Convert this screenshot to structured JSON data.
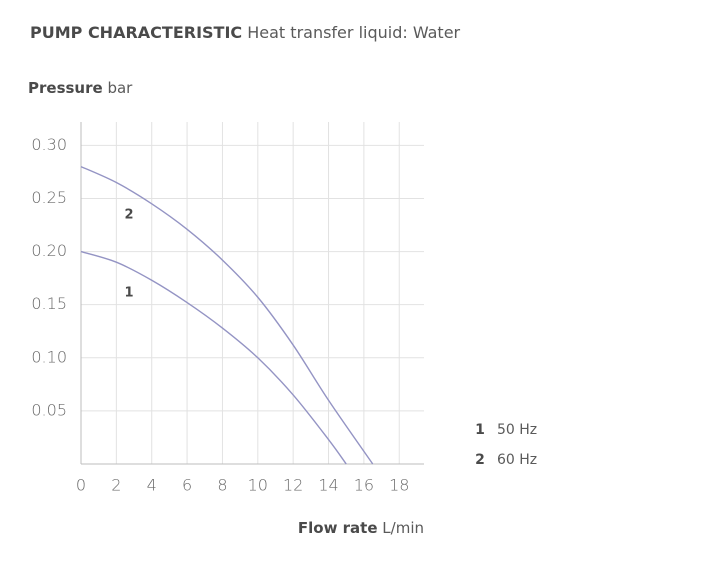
{
  "chart_data": {
    "type": "line",
    "title": "PUMP CHARACTERISTIC",
    "subtitle": "Heat transfer liquid: Water",
    "y_label": "Pressure",
    "y_unit": "bar",
    "x_label": "Flow rate",
    "x_unit": "L/min",
    "xlim": [
      0,
      19.4
    ],
    "xticks": [
      0,
      2,
      4,
      6,
      8,
      10,
      12,
      14,
      16,
      18
    ],
    "ylim": [
      0,
      0.322
    ],
    "yticks": [
      0.05,
      {
        "value": 0.1,
        "label": "0.10"
      },
      0.15,
      {
        "value": 0.2,
        "label": "0.20"
      },
      0.25,
      {
        "value": 0.3,
        "label": "0.30"
      }
    ],
    "grid": true,
    "series": [
      {
        "key": "1",
        "name": "50 Hz",
        "color": "#9494c4",
        "x": [
          0,
          2,
          4,
          6,
          8,
          10,
          12,
          14,
          15
        ],
        "values": [
          0.2,
          0.19,
          0.173,
          0.152,
          0.128,
          0.1,
          0.065,
          0.023,
          0
        ]
      },
      {
        "key": "2",
        "name": "60 Hz",
        "color": "#9494c4",
        "x": [
          0,
          2,
          4,
          6,
          8,
          10,
          12,
          14,
          16.5
        ],
        "values": [
          0.28,
          0.265,
          0.245,
          0.221,
          0.192,
          0.157,
          0.112,
          0.06,
          0
        ]
      }
    ]
  }
}
